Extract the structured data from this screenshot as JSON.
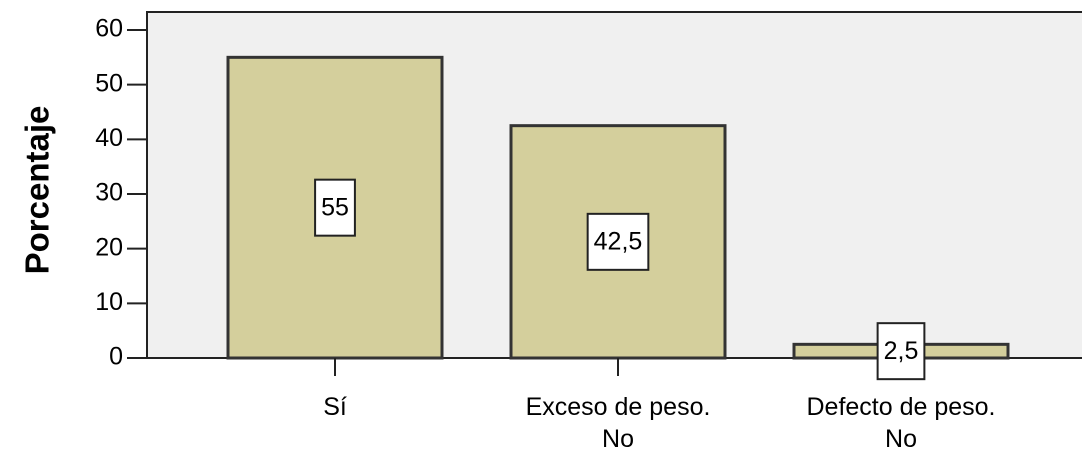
{
  "chart_data": {
    "type": "bar",
    "y_label": "Porcentaje",
    "categories": [
      "Sí",
      "Exceso de peso.\nNo",
      "Defecto de peso.\nNo"
    ],
    "values": [
      55,
      42.5,
      2.5
    ],
    "value_labels": [
      "55",
      "42,5",
      "2,5"
    ],
    "color": "#d4cf9c",
    "ylim": [
      0,
      60
    ],
    "yticks": [
      0,
      10,
      20,
      30,
      40,
      50,
      60
    ]
  }
}
